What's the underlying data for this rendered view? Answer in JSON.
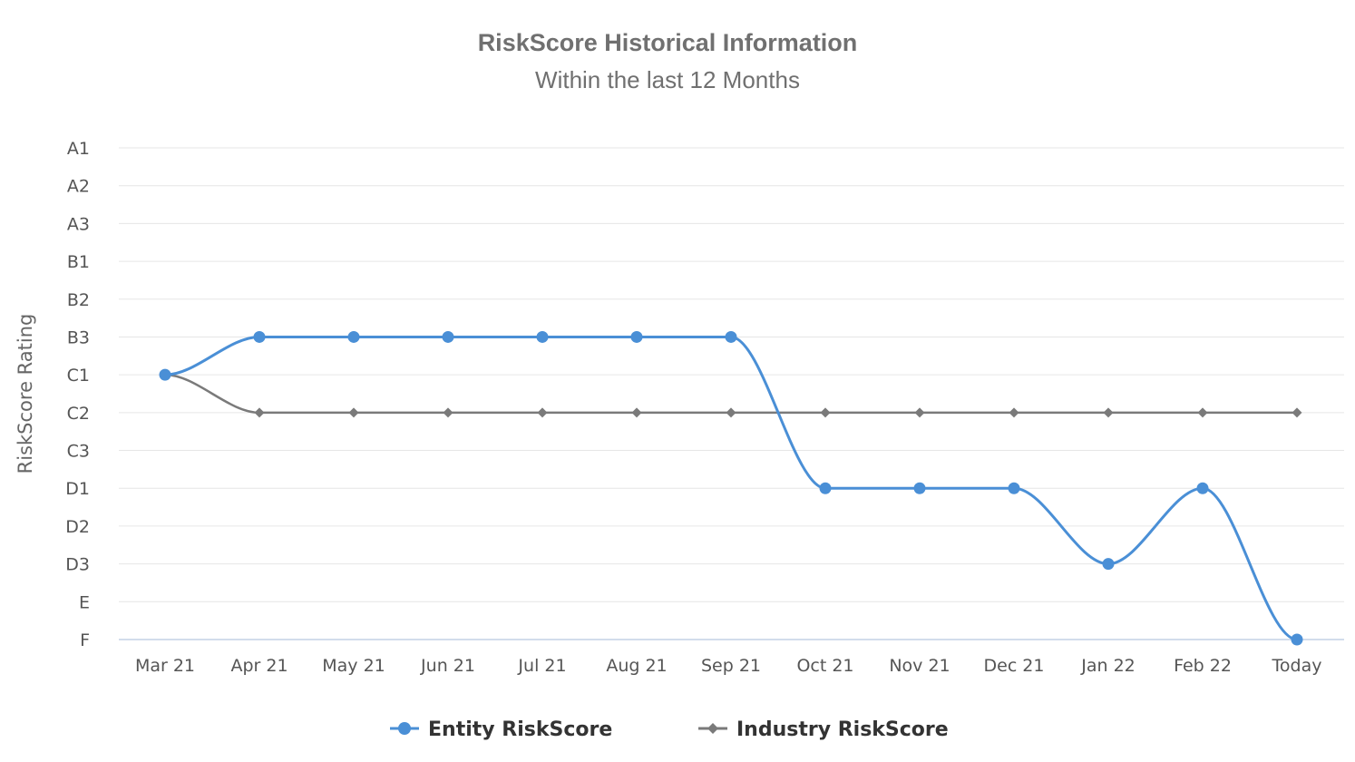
{
  "chart_data": {
    "type": "line",
    "title": "RiskScore Historical Information",
    "subtitle": "Within the last 12 Months",
    "xlabel": "",
    "ylabel": "RiskScore Rating",
    "categories": [
      "Mar 21",
      "Apr 21",
      "May 21",
      "Jun 21",
      "Jul 21",
      "Aug 21",
      "Sep 21",
      "Oct 21",
      "Nov 21",
      "Dec 21",
      "Jan 22",
      "Feb 22",
      "Today"
    ],
    "y_categories": [
      "A1",
      "A2",
      "A3",
      "B1",
      "B2",
      "B3",
      "C1",
      "C2",
      "C3",
      "D1",
      "D2",
      "D3",
      "E",
      "F"
    ],
    "series": [
      {
        "name": "Entity RiskScore",
        "color": "#4a8fd6",
        "marker": "circle",
        "values": [
          "C1",
          "B3",
          "B3",
          "B3",
          "B3",
          "B3",
          "B3",
          "D1",
          "D1",
          "D1",
          "D3",
          "D1",
          "F"
        ]
      },
      {
        "name": "Industry RiskScore",
        "color": "#7a7a7a",
        "marker": "diamond",
        "values": [
          "C1",
          "C2",
          "C2",
          "C2",
          "C2",
          "C2",
          "C2",
          "C2",
          "C2",
          "C2",
          "C2",
          "C2",
          "C2"
        ]
      }
    ],
    "grid": true,
    "legend_position": "bottom"
  }
}
